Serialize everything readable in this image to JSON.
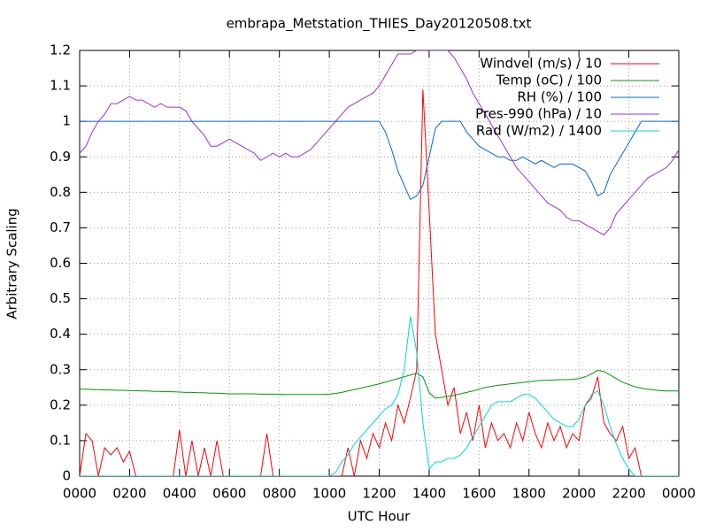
{
  "chart_data": {
    "type": "line",
    "title": "embrapa_Metstation_THIES_Day20120508.txt",
    "x_label": "UTC Hour",
    "y_label": "Arbitrary Scaling",
    "xlim": [
      0,
      24
    ],
    "ylim": [
      0,
      1.2
    ],
    "xticks": [
      {
        "value": 0,
        "label": "0000"
      },
      {
        "value": 2,
        "label": "0200"
      },
      {
        "value": 4,
        "label": "0400"
      },
      {
        "value": 6,
        "label": "0600"
      },
      {
        "value": 8,
        "label": "0800"
      },
      {
        "value": 10,
        "label": "1000"
      },
      {
        "value": 12,
        "label": "1200"
      },
      {
        "value": 14,
        "label": "1400"
      },
      {
        "value": 16,
        "label": "1600"
      },
      {
        "value": 18,
        "label": "1800"
      },
      {
        "value": 20,
        "label": "2000"
      },
      {
        "value": 22,
        "label": "2200"
      },
      {
        "value": 24,
        "label": "0000"
      }
    ],
    "yticks": [
      0,
      0.1,
      0.2,
      0.3,
      0.4,
      0.5,
      0.6,
      0.7,
      0.8,
      0.9,
      1,
      1.1,
      1.2
    ],
    "grid": true,
    "legend": "upper right",
    "x": [
      0,
      0.25,
      0.5,
      0.75,
      1,
      1.25,
      1.5,
      1.75,
      2,
      2.25,
      2.5,
      2.75,
      3,
      3.25,
      3.5,
      3.75,
      4,
      4.25,
      4.5,
      4.75,
      5,
      5.25,
      5.5,
      5.75,
      6,
      6.25,
      6.5,
      6.75,
      7,
      7.25,
      7.5,
      7.75,
      8,
      8.25,
      8.5,
      8.75,
      9,
      9.25,
      9.5,
      9.75,
      10,
      10.25,
      10.5,
      10.75,
      11,
      11.25,
      11.5,
      11.75,
      12,
      12.25,
      12.5,
      12.75,
      13,
      13.25,
      13.5,
      13.75,
      14,
      14.25,
      14.5,
      14.75,
      15,
      15.25,
      15.5,
      15.75,
      16,
      16.25,
      16.5,
      16.75,
      17,
      17.25,
      17.5,
      17.75,
      18,
      18.25,
      18.5,
      18.75,
      19,
      19.25,
      19.5,
      19.75,
      20,
      20.25,
      20.5,
      20.75,
      21,
      21.25,
      21.5,
      21.75,
      22,
      22.25,
      22.5,
      22.75,
      23,
      23.25,
      23.5,
      23.75,
      24
    ],
    "series": [
      {
        "name": "Windvel (m/s) / 10",
        "color": "#ff0000",
        "values": [
          0,
          0.12,
          0.1,
          0,
          0.08,
          0.06,
          0.08,
          0.04,
          0.07,
          0,
          0,
          0,
          0,
          0,
          0,
          0,
          0.13,
          0,
          0.1,
          0,
          0.08,
          0,
          0.1,
          0,
          0,
          0,
          0,
          0,
          0,
          0,
          0.12,
          0,
          0,
          0,
          0,
          0,
          0,
          0,
          0,
          0,
          0,
          0,
          0,
          0.08,
          0,
          0.1,
          0.05,
          0.12,
          0.08,
          0.15,
          0.1,
          0.2,
          0.15,
          0.22,
          0.3,
          1.09,
          0.75,
          0.4,
          0.3,
          0.2,
          0.25,
          0.12,
          0.18,
          0.1,
          0.2,
          0.08,
          0.15,
          0.1,
          0.12,
          0.08,
          0.15,
          0.1,
          0.18,
          0.12,
          0.08,
          0.15,
          0.1,
          0.14,
          0.08,
          0.12,
          0.1,
          0.2,
          0.22,
          0.28,
          0.15,
          0.12,
          0.1,
          0.14,
          0.05,
          0.08,
          0,
          0,
          0,
          0,
          0,
          0,
          0
        ]
      },
      {
        "name": "Temp (oC) / 100",
        "color": "#009900",
        "values": [
          0.245,
          0.245,
          0.244,
          0.244,
          0.243,
          0.243,
          0.242,
          0.242,
          0.241,
          0.241,
          0.24,
          0.24,
          0.239,
          0.239,
          0.238,
          0.238,
          0.237,
          0.236,
          0.236,
          0.235,
          0.235,
          0.234,
          0.234,
          0.233,
          0.232,
          0.232,
          0.232,
          0.232,
          0.232,
          0.231,
          0.231,
          0.231,
          0.231,
          0.23,
          0.23,
          0.23,
          0.23,
          0.23,
          0.23,
          0.23,
          0.231,
          0.233,
          0.236,
          0.24,
          0.244,
          0.248,
          0.252,
          0.256,
          0.26,
          0.265,
          0.27,
          0.275,
          0.28,
          0.285,
          0.29,
          0.28,
          0.235,
          0.22,
          0.222,
          0.225,
          0.228,
          0.232,
          0.236,
          0.24,
          0.245,
          0.25,
          0.253,
          0.256,
          0.258,
          0.26,
          0.262,
          0.264,
          0.266,
          0.268,
          0.27,
          0.27,
          0.271,
          0.272,
          0.272,
          0.273,
          0.275,
          0.28,
          0.288,
          0.298,
          0.295,
          0.285,
          0.275,
          0.265,
          0.258,
          0.252,
          0.248,
          0.245,
          0.243,
          0.241,
          0.24,
          0.24,
          0.24
        ]
      },
      {
        "name": "RH (%) / 100",
        "color": "#0066dd",
        "values": [
          1,
          1,
          1,
          1,
          1,
          1,
          1,
          1,
          1,
          1,
          1,
          1,
          1,
          1,
          1,
          1,
          1,
          1,
          1,
          1,
          1,
          1,
          1,
          1,
          1,
          1,
          1,
          1,
          1,
          1,
          1,
          1,
          1,
          1,
          1,
          1,
          1,
          1,
          1,
          1,
          1,
          1,
          1,
          1,
          1,
          1,
          1,
          1,
          1,
          0.97,
          0.92,
          0.86,
          0.82,
          0.78,
          0.79,
          0.82,
          0.9,
          0.98,
          1,
          1,
          1,
          1,
          0.97,
          0.95,
          0.93,
          0.92,
          0.91,
          0.9,
          0.9,
          0.89,
          0.89,
          0.9,
          0.89,
          0.88,
          0.89,
          0.88,
          0.87,
          0.88,
          0.88,
          0.88,
          0.87,
          0.86,
          0.83,
          0.79,
          0.8,
          0.85,
          0.88,
          0.91,
          0.94,
          0.97,
          1,
          1,
          1,
          1,
          1,
          1,
          1
        ]
      },
      {
        "name": "Pres-990 (hPa) / 10",
        "color": "#9b30d9",
        "values": [
          0.91,
          0.93,
          0.97,
          1,
          1.02,
          1.05,
          1.05,
          1.06,
          1.07,
          1.06,
          1.06,
          1.05,
          1.04,
          1.05,
          1.04,
          1.04,
          1.04,
          1.03,
          1,
          0.98,
          0.96,
          0.93,
          0.93,
          0.94,
          0.95,
          0.94,
          0.93,
          0.92,
          0.91,
          0.89,
          0.9,
          0.91,
          0.9,
          0.91,
          0.9,
          0.9,
          0.91,
          0.92,
          0.94,
          0.96,
          0.98,
          1,
          1.02,
          1.04,
          1.05,
          1.06,
          1.07,
          1.08,
          1.1,
          1.13,
          1.16,
          1.19,
          1.19,
          1.19,
          1.2,
          1.2,
          1.2,
          1.2,
          1.2,
          1.2,
          1.18,
          1.15,
          1.12,
          1.08,
          1.05,
          1.02,
          0.99,
          0.96,
          0.93,
          0.9,
          0.87,
          0.85,
          0.83,
          0.81,
          0.79,
          0.77,
          0.76,
          0.75,
          0.73,
          0.72,
          0.72,
          0.71,
          0.7,
          0.69,
          0.68,
          0.7,
          0.74,
          0.76,
          0.78,
          0.8,
          0.82,
          0.84,
          0.85,
          0.86,
          0.87,
          0.89,
          0.92
        ]
      },
      {
        "name": "Rad (W/m2) / 1400",
        "color": "#00d8d8",
        "values": [
          0,
          0,
          0,
          0,
          0,
          0,
          0,
          0,
          0,
          0,
          0,
          0,
          0,
          0,
          0,
          0,
          0,
          0,
          0,
          0,
          0,
          0,
          0,
          0,
          0,
          0,
          0,
          0,
          0,
          0,
          0,
          0,
          0,
          0,
          0,
          0,
          0,
          0,
          0,
          0,
          0,
          0.01,
          0.04,
          0.06,
          0.09,
          0.11,
          0.13,
          0.15,
          0.17,
          0.19,
          0.2,
          0.23,
          0.3,
          0.45,
          0.35,
          0.15,
          0.02,
          0.04,
          0.04,
          0.05,
          0.05,
          0.06,
          0.08,
          0.11,
          0.14,
          0.17,
          0.2,
          0.21,
          0.21,
          0.21,
          0.22,
          0.23,
          0.23,
          0.22,
          0.2,
          0.18,
          0.16,
          0.15,
          0.14,
          0.14,
          0.16,
          0.2,
          0.23,
          0.24,
          0.2,
          0.14,
          0.09,
          0.05,
          0.02,
          0,
          0,
          0,
          0,
          0,
          0,
          0,
          0
        ]
      }
    ]
  }
}
